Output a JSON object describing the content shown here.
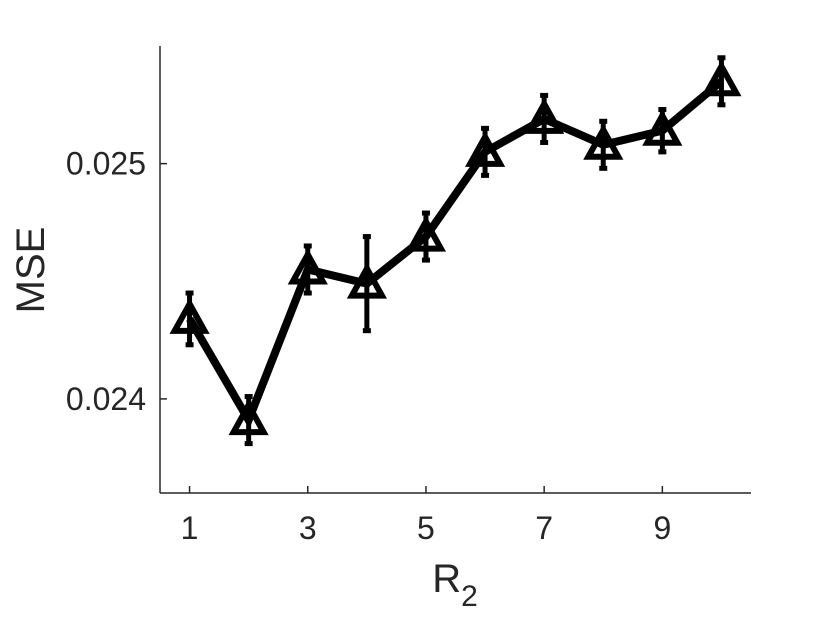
{
  "chart_data": {
    "type": "line",
    "xlabel": "R",
    "xlabel_subscript": "2",
    "ylabel": "MSE",
    "xlim": [
      0.5,
      10.5
    ],
    "ylim": [
      0.0236,
      0.0255
    ],
    "xticks": [
      "1",
      "3",
      "5",
      "7",
      "9"
    ],
    "yticks": [
      "0.024",
      "0.025"
    ],
    "grid": false,
    "legend": "none",
    "series": [
      {
        "marker": "triangle",
        "color": "#000000",
        "x": [
          1,
          2,
          3,
          4,
          5,
          6,
          7,
          8,
          9,
          10
        ],
        "y": [
          0.02434,
          0.02391,
          0.02455,
          0.02449,
          0.02469,
          0.02505,
          0.02519,
          0.02508,
          0.02514,
          0.02535
        ],
        "err": [
          0.00011,
          0.0001,
          0.0001,
          0.0002,
          0.0001,
          0.0001,
          0.0001,
          0.0001,
          9e-05,
          0.0001
        ]
      }
    ]
  }
}
